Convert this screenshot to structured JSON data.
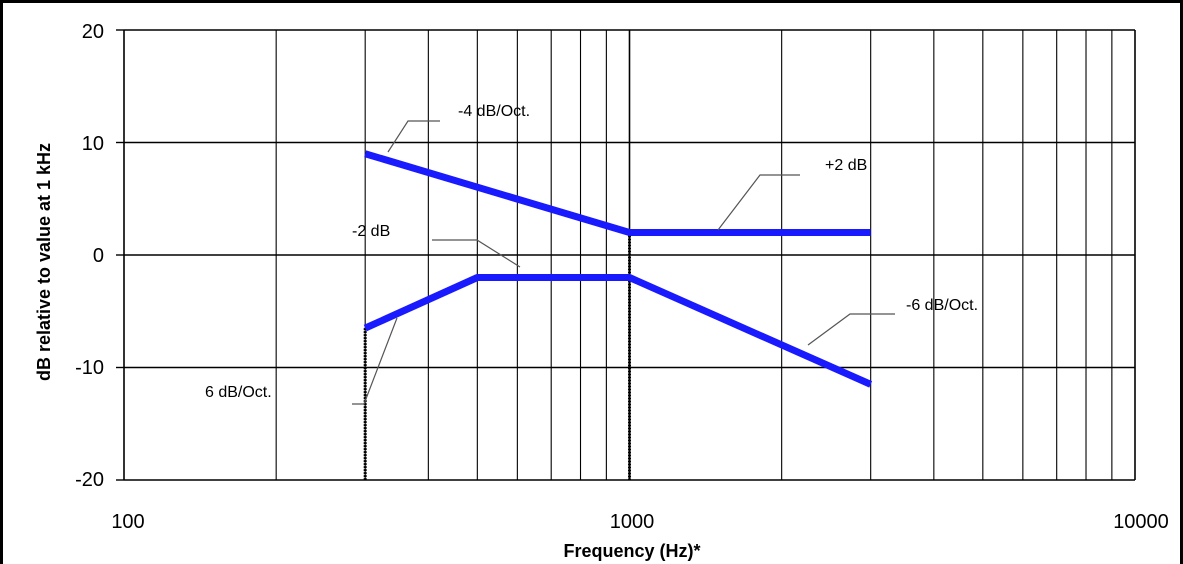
{
  "chart_data": {
    "type": "line",
    "title": "",
    "xlabel": "Frequency (Hz)*",
    "ylabel": "dB relative to value at 1 kHz",
    "x_scale": "log",
    "xlim": [
      100,
      10000
    ],
    "ylim": [
      -20,
      20
    ],
    "x_ticks": [
      "100",
      "1000",
      "10000"
    ],
    "y_ticks": [
      "20",
      "10",
      "0",
      "-10",
      "-20"
    ],
    "grid": true,
    "legend": "none",
    "series": [
      {
        "color": "#1a1aff",
        "x": [
          300,
          1000,
          3000
        ],
        "y": [
          9,
          2,
          2
        ]
      },
      {
        "color": "#1a1aff",
        "x": [
          300,
          500,
          1000,
          3000
        ],
        "y": [
          -6.5,
          -2,
          -2,
          -11.5
        ]
      }
    ],
    "annotations": [
      {
        "text": "-4 dB/Oct."
      },
      {
        "text": "+2 dB"
      },
      {
        "text": "-2 dB"
      },
      {
        "text": "-6 dB/Oct."
      },
      {
        "text": "6 dB/Oct."
      }
    ]
  }
}
